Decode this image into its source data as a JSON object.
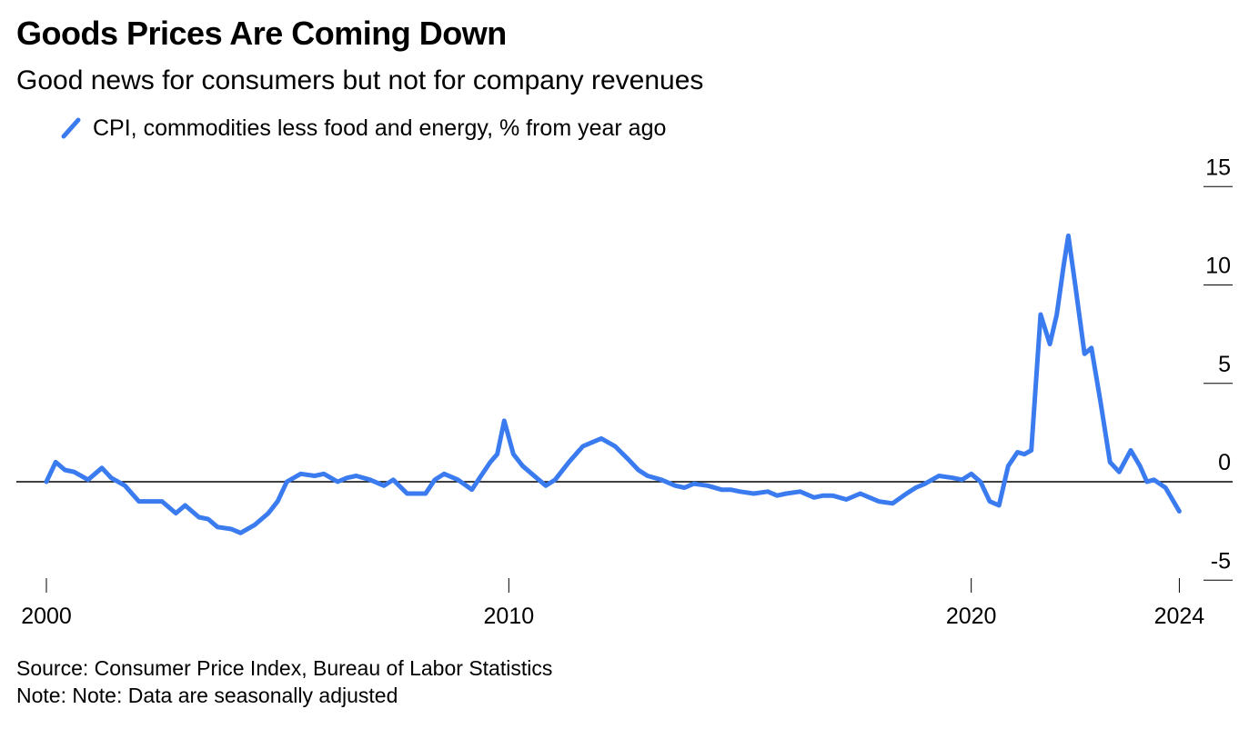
{
  "chart_data": {
    "type": "line",
    "title": "Goods Prices Are Coming Down",
    "subtitle": "Good news for consumers but not for company revenues",
    "xlabel": "",
    "ylabel": "",
    "xlim": [
      2000,
      2024
    ],
    "ylim": [
      -5,
      15
    ],
    "x_ticks": [
      {
        "value": 2000,
        "label": "2000"
      },
      {
        "value": 2010,
        "label": "2010"
      },
      {
        "value": 2020,
        "label": "2020"
      },
      {
        "value": 2024.5,
        "label": "2024"
      }
    ],
    "y_ticks": [
      {
        "value": 15,
        "label": "15"
      },
      {
        "value": 10,
        "label": "10"
      },
      {
        "value": 5,
        "label": "5"
      },
      {
        "value": 0,
        "label": "0"
      },
      {
        "value": -5,
        "label": "-5"
      }
    ],
    "zero_line": true,
    "grid": false,
    "legend_position": "top-left",
    "series": [
      {
        "name": "CPI, commodities less food and energy, % from year ago",
        "color": "#3B7BF0",
        "x": [
          2000.0,
          2000.2,
          2000.4,
          2000.6,
          2000.9,
          2001.2,
          2001.4,
          2001.7,
          2002.0,
          2002.2,
          2002.5,
          2002.8,
          2003.0,
          2003.3,
          2003.5,
          2003.7,
          2004.0,
          2004.2,
          2004.5,
          2004.8,
          2005.0,
          2005.2,
          2005.5,
          2005.8,
          2006.0,
          2006.3,
          2006.5,
          2006.7,
          2007.0,
          2007.3,
          2007.5,
          2007.8,
          2008.0,
          2008.2,
          2008.4,
          2008.6,
          2008.9,
          2009.2,
          2009.4,
          2009.6,
          2009.75,
          2009.9,
          2010.1,
          2010.3,
          2010.6,
          2010.8,
          2011.0,
          2011.3,
          2011.6,
          2011.8,
          2012.0,
          2012.3,
          2012.6,
          2012.8,
          2013.0,
          2013.3,
          2013.6,
          2013.8,
          2014.0,
          2014.3,
          2014.6,
          2014.8,
          2015.0,
          2015.3,
          2015.6,
          2015.8,
          2016.0,
          2016.3,
          2016.6,
          2016.8,
          2017.0,
          2017.3,
          2017.6,
          2017.8,
          2018.0,
          2018.3,
          2018.6,
          2018.8,
          2019.0,
          2019.3,
          2019.6,
          2019.8,
          2020.0,
          2020.2,
          2020.4,
          2020.6,
          2020.8,
          2021.0,
          2021.15,
          2021.3,
          2021.5,
          2021.7,
          2021.85,
          2022.0,
          2022.1,
          2022.25,
          2022.45,
          2022.6,
          2022.8,
          2023.0,
          2023.2,
          2023.45,
          2023.65,
          2023.8,
          2023.95,
          2024.2,
          2024.5
        ],
        "values": [
          0.0,
          1.0,
          0.6,
          0.5,
          0.1,
          0.7,
          0.2,
          -0.2,
          -1.0,
          -1.0,
          -1.0,
          -1.6,
          -1.2,
          -1.8,
          -1.9,
          -2.3,
          -2.4,
          -2.6,
          -2.2,
          -1.6,
          -1.0,
          0.0,
          0.4,
          0.3,
          0.4,
          0.0,
          0.2,
          0.3,
          0.1,
          -0.2,
          0.1,
          -0.6,
          -0.6,
          -0.6,
          0.1,
          0.4,
          0.1,
          -0.4,
          0.3,
          1.0,
          1.4,
          3.1,
          1.4,
          0.8,
          0.2,
          -0.2,
          0.1,
          1.0,
          1.8,
          2.0,
          2.2,
          1.8,
          1.1,
          0.6,
          0.3,
          0.1,
          -0.2,
          -0.3,
          -0.1,
          -0.2,
          -0.4,
          -0.4,
          -0.5,
          -0.6,
          -0.5,
          -0.7,
          -0.6,
          -0.5,
          -0.8,
          -0.7,
          -0.7,
          -0.9,
          -0.6,
          -0.8,
          -1.0,
          -1.1,
          -0.6,
          -0.3,
          -0.1,
          0.3,
          0.2,
          0.1,
          0.4,
          0.0,
          -1.0,
          -1.2,
          0.8,
          1.5,
          1.4,
          1.6,
          8.5,
          7.0,
          8.5,
          11.0,
          12.5,
          10.0,
          6.5,
          6.8,
          4.0,
          1.0,
          0.5,
          1.6,
          0.8,
          0.0,
          0.1,
          -0.3,
          -1.5
        ]
      }
    ]
  },
  "footer": {
    "source": "Source: Consumer Price Index, Bureau of Labor Statistics",
    "note": "Note: Note: Data are seasonally adjusted"
  }
}
